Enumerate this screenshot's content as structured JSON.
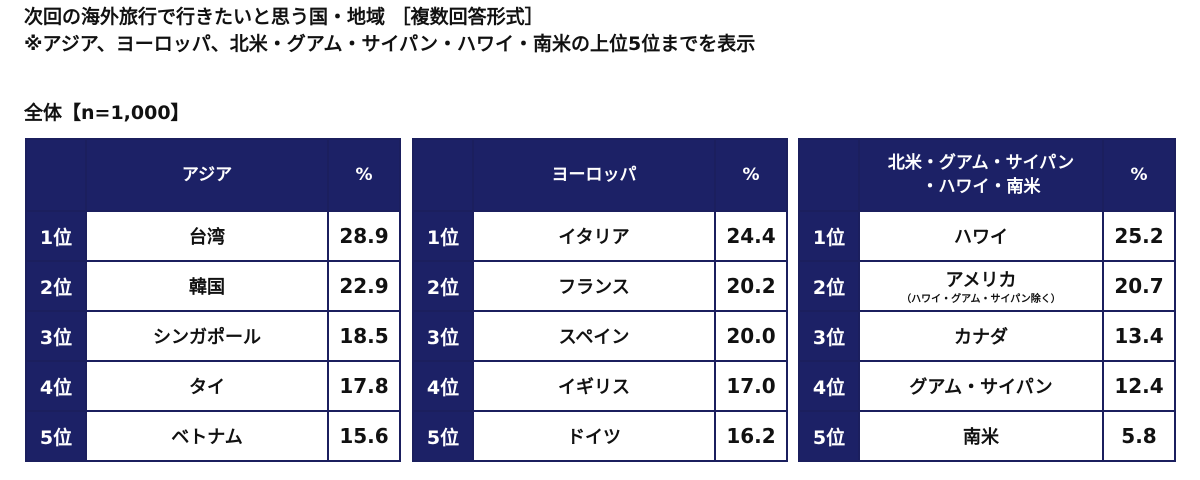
{
  "title": {
    "line1": "次回の海外旅行で行きたいと思う国・地域 ［複数回答形式］",
    "line2": "※アジア、ヨーロッパ、北米・グアム・サイパン・ハワイ・南米の上位5位までを表示"
  },
  "subhead": "全体【n=1,000】",
  "chart_data": [
    {
      "type": "table",
      "header": "アジア",
      "pct_header": "%",
      "rows": [
        {
          "rank": "1位",
          "name": "台湾",
          "value": "28.9"
        },
        {
          "rank": "2位",
          "name": "韓国",
          "value": "22.9"
        },
        {
          "rank": "3位",
          "name": "シンガポール",
          "value": "18.5"
        },
        {
          "rank": "4位",
          "name": "タイ",
          "value": "17.8"
        },
        {
          "rank": "5位",
          "name": "ベトナム",
          "value": "15.6"
        }
      ]
    },
    {
      "type": "table",
      "header": "ヨーロッパ",
      "pct_header": "%",
      "rows": [
        {
          "rank": "1位",
          "name": "イタリア",
          "value": "24.4"
        },
        {
          "rank": "2位",
          "name": "フランス",
          "value": "20.2"
        },
        {
          "rank": "3位",
          "name": "スペイン",
          "value": "20.0"
        },
        {
          "rank": "4位",
          "name": "イギリス",
          "value": "17.0"
        },
        {
          "rank": "5位",
          "name": "ドイツ",
          "value": "16.2"
        }
      ]
    },
    {
      "type": "table",
      "header": "北米・グアム・サイパン・ハワイ・南米",
      "header_line1": "北米・グアム・サイパン",
      "header_line2": "・ハワイ・南米",
      "pct_header": "%",
      "rows": [
        {
          "rank": "1位",
          "name": "ハワイ",
          "value": "25.2"
        },
        {
          "rank": "2位",
          "name": "アメリカ",
          "note": "（ハワイ・グアム・サイパン除く）",
          "value": "20.7"
        },
        {
          "rank": "3位",
          "name": "カナダ",
          "value": "13.4"
        },
        {
          "rank": "4位",
          "name": "グアム・サイパン",
          "value": "12.4"
        },
        {
          "rank": "5位",
          "name": "南米",
          "value": "5.8"
        }
      ]
    }
  ]
}
